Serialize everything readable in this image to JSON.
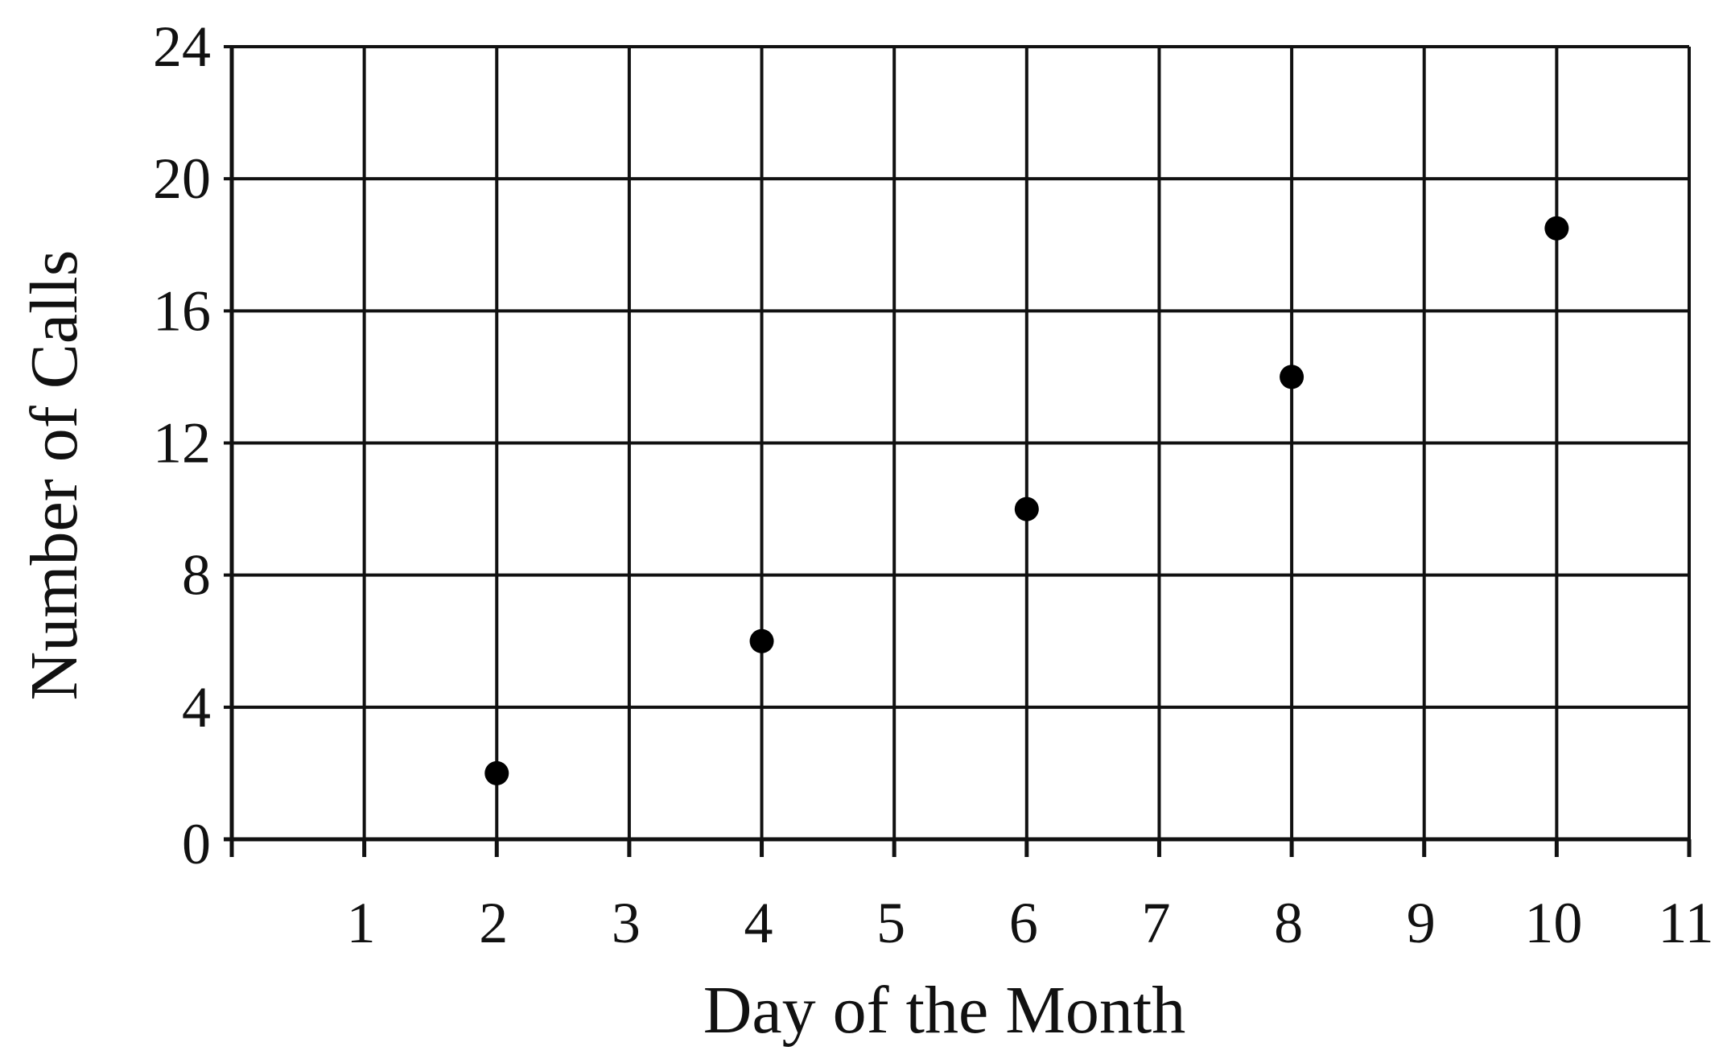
{
  "chart_data": {
    "type": "scatter",
    "title": "",
    "xlabel": "Day of the Month",
    "ylabel": "Number of Calls",
    "xlim": [
      0,
      11
    ],
    "ylim": [
      0,
      24
    ],
    "xticks": [
      "1",
      "2",
      "3",
      "4",
      "5",
      "6",
      "7",
      "8",
      "9",
      "10",
      "11"
    ],
    "yticks": [
      "0",
      "4",
      "8",
      "12",
      "16",
      "20",
      "24"
    ],
    "grid": true,
    "series": [
      {
        "name": "Calls",
        "x": [
          2,
          4,
          6,
          8,
          10
        ],
        "y": [
          2,
          6,
          10,
          14,
          18.5
        ]
      }
    ]
  }
}
